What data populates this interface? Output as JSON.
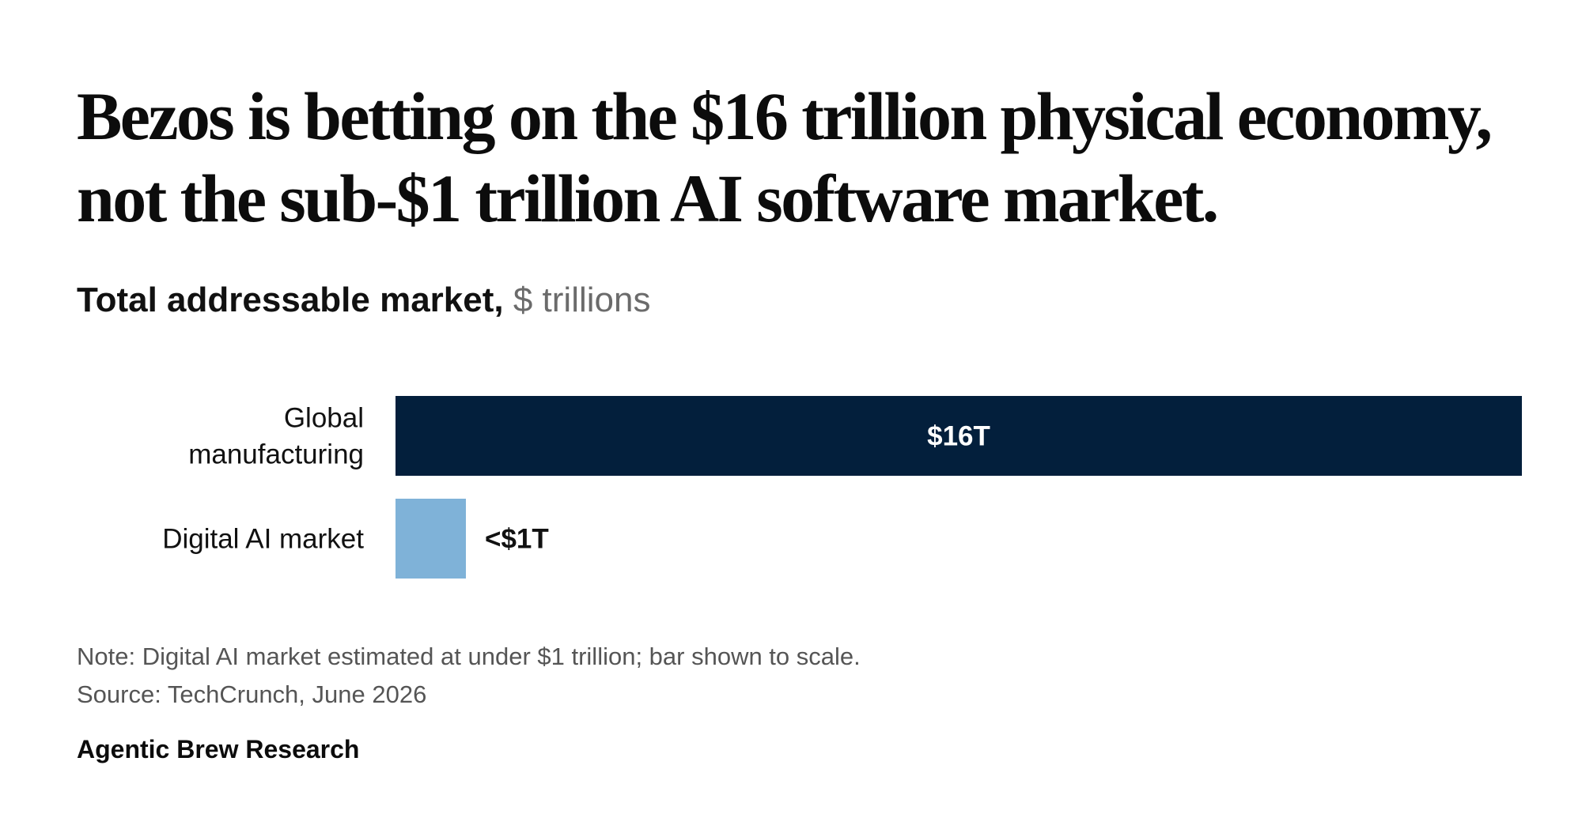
{
  "headline": "Bezos is betting on the $16 trillion physical economy, not the sub-$1 trillion AI software market.",
  "subtitle": {
    "bold": "Total addressable market,",
    "unit": "$ trillions"
  },
  "chart_data": {
    "type": "bar",
    "orientation": "horizontal",
    "title": "Total addressable market,",
    "units": "$ trillions",
    "categories": [
      "Global manufacturing",
      "Digital AI market"
    ],
    "category_lines": [
      [
        "Global",
        "manufacturing"
      ],
      [
        "Digital AI market"
      ]
    ],
    "values": [
      16,
      1
    ],
    "data_labels": [
      "$16T",
      "<$1T"
    ],
    "label_position": [
      "inside",
      "outside"
    ],
    "colors": [
      "#031f3c",
      "#7fb2d8"
    ],
    "label_colors": [
      "#ffffff",
      "#111111"
    ],
    "xlim": [
      0,
      16
    ],
    "grid": false,
    "legend": "none"
  },
  "notes": {
    "note": "Note: Digital AI market estimated at under $1 trillion; bar shown to scale.",
    "source": "Source: TechCrunch, June 2026"
  },
  "brand": "Agentic Brew Research"
}
